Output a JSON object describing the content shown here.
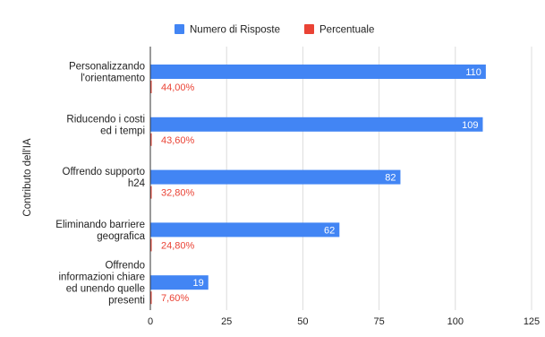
{
  "chart_data": {
    "type": "bar",
    "orientation": "horizontal",
    "ylabel": "Contributo dell'IA",
    "categories": [
      [
        "Personalizzando",
        "l'orientamento"
      ],
      [
        "Riducendo i costi",
        "ed i tempi"
      ],
      [
        "Offrendo supporto",
        "h24"
      ],
      [
        "Eliminando barriere",
        "geografica"
      ],
      [
        "Offrendo",
        "informazioni chiare",
        "ed unendo quelle",
        "presenti"
      ]
    ],
    "series": [
      {
        "name": "Numero di Risposte",
        "color": "#4285f4",
        "values": [
          110,
          109,
          82,
          62,
          19
        ],
        "labels": [
          "110",
          "109",
          "82",
          "62",
          "19"
        ]
      },
      {
        "name": "Percentuale",
        "color": "#ea4335",
        "values": [
          0.44,
          0.436,
          0.328,
          0.248,
          0.076
        ],
        "labels": [
          "44,00%",
          "43,60%",
          "32,80%",
          "24,80%",
          "7,60%"
        ]
      }
    ],
    "xlim": [
      0,
      125
    ],
    "xticks": [
      0,
      25,
      50,
      75,
      100,
      125
    ],
    "grid": true,
    "legend": "top-center"
  }
}
